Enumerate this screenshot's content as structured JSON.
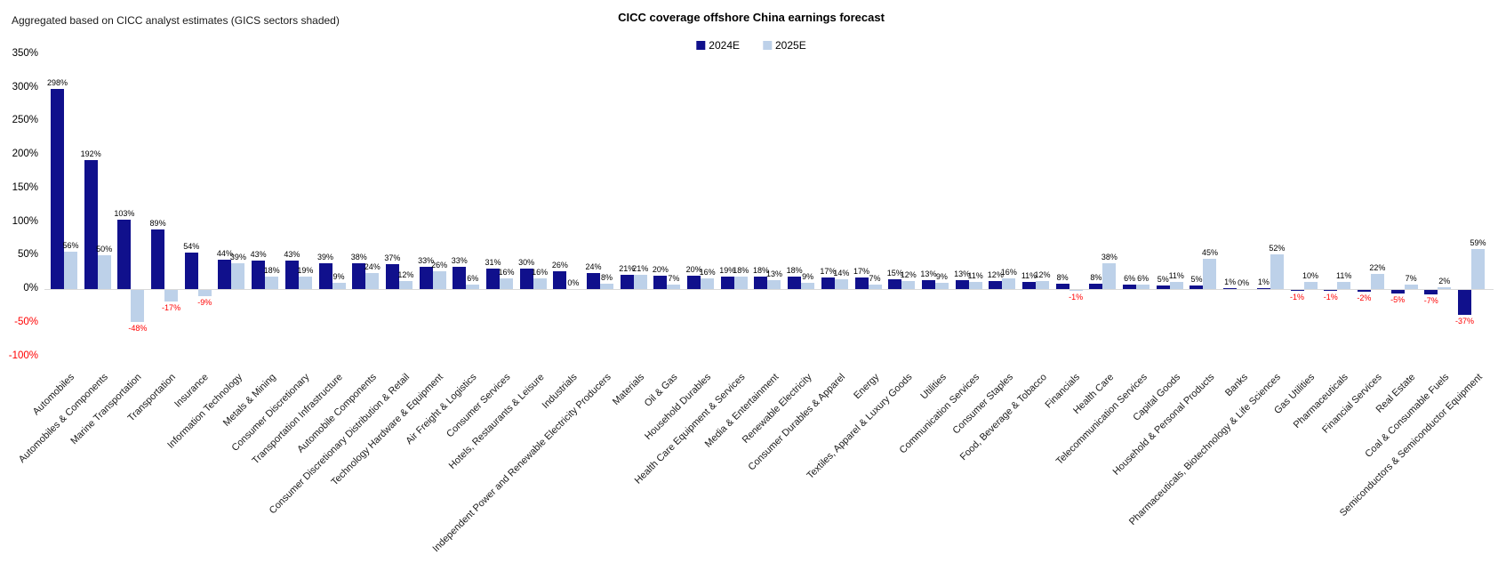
{
  "header": {
    "subtitle": "Aggregated based on CICC analyst estimates (GICS sectors shaded)",
    "title": "CICC coverage offshore China earnings forecast"
  },
  "colors": {
    "series_2024": "#10108C",
    "series_2025": "#BDD1E9",
    "negative_text": "#FF0000",
    "positive_text": "#000000",
    "axis_line": "#D9D9D9"
  },
  "chart_data": {
    "type": "bar",
    "title": "CICC coverage offshore China earnings forecast",
    "subtitle": "Aggregated based on CICC analyst estimates (GICS sectors shaded)",
    "xlabel": "",
    "ylabel": "",
    "ylim": [
      -100,
      350
    ],
    "yticks": [
      350,
      300,
      250,
      200,
      150,
      100,
      50,
      0,
      -50,
      -100
    ],
    "ytick_labels": [
      "350%",
      "300%",
      "250%",
      "200%",
      "150%",
      "100%",
      "50%",
      "0%",
      "-50%",
      "-100%"
    ],
    "grid": false,
    "legend_position": "top-center",
    "value_labels": true,
    "negative_labels_red": true,
    "categories": [
      "Automobiles",
      "Automobiles & Components",
      "Marine Transportation",
      "Transportation",
      "Insurance",
      "Information Technology",
      "Metals & Mining",
      "Consumer Discretionary",
      "Transportation Infrastructure",
      "Automobile Components",
      "Consumer Discretionary Distribution & Retail",
      "Technology Hardware & Equipment",
      "Air Freight & Logistics",
      "Consumer Services",
      "Hotels, Restaurants & Leisure",
      "Industrials",
      "Independent Power and Renewable Electricity Producers",
      "Materials",
      "Oil & Gas",
      "Household Durables",
      "Health Care Equipment & Services",
      "Media & Entertainment",
      "Renewable Electricity",
      "Consumer Durables & Apparel",
      "Energy",
      "Textiles, Apparel & Luxury Goods",
      "Utilities",
      "Communication Services",
      "Consumer Staples",
      "Food, Beverage & Tobacco",
      "Financials",
      "Health Care",
      "Telecommunication Services",
      "Capital Goods",
      "Household & Personal Products",
      "Banks",
      "Pharmaceuticals, Biotechnology & Life Sciences",
      "Gas Utilities",
      "Pharmaceuticals",
      "Financial Services",
      "Real Estate",
      "Coal & Consumable Fuels",
      "Semiconductors & Semiconductor Equipment"
    ],
    "series": [
      {
        "name": "2024E",
        "color": "#10108C",
        "values": [
          298,
          192,
          103,
          89,
          54,
          44,
          43,
          43,
          39,
          38,
          37,
          33,
          33,
          31,
          30,
          26,
          24,
          21,
          20,
          20,
          19,
          18,
          18,
          17,
          17,
          15,
          13,
          13,
          12,
          11,
          8,
          8,
          6,
          5,
          5,
          1,
          1,
          -1,
          -1,
          -2,
          -5,
          -7,
          -37
        ]
      },
      {
        "name": "2025E",
        "color": "#BDD1E9",
        "values": [
          56,
          50,
          -48,
          -17,
          -9,
          39,
          18,
          19,
          9,
          24,
          12,
          26,
          6,
          16,
          16,
          0,
          8,
          21,
          7,
          16,
          18,
          13,
          9,
          14,
          7,
          12,
          9,
          11,
          16,
          12,
          -1,
          38,
          6,
          11,
          45,
          0,
          52,
          10,
          11,
          22,
          7,
          2,
          59
        ]
      }
    ]
  }
}
